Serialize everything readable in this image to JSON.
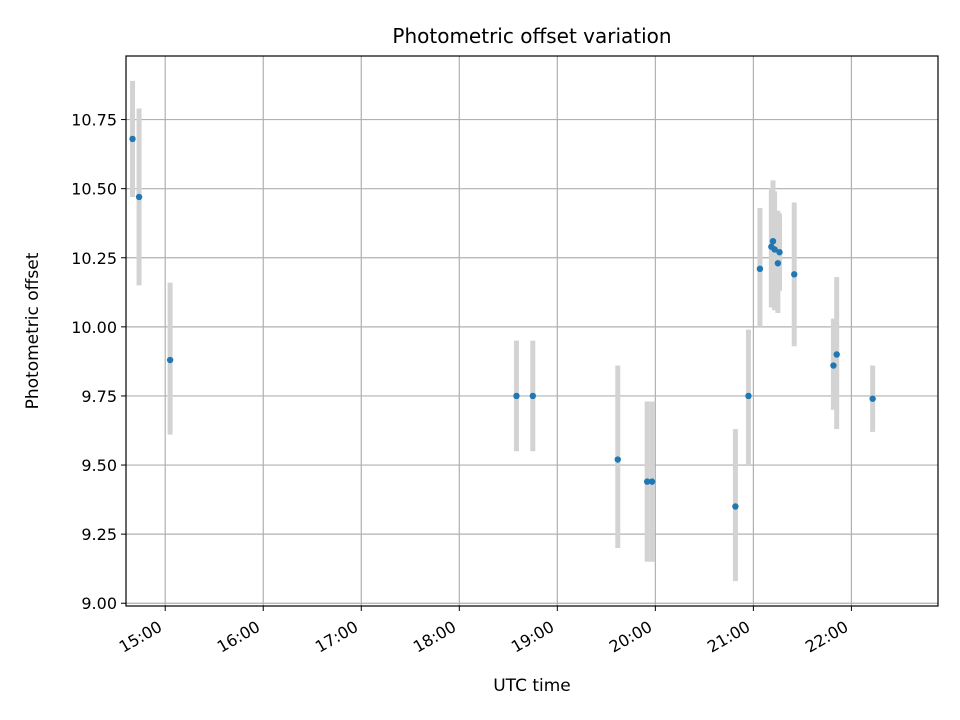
{
  "chart_data": {
    "type": "scatter",
    "title": "Photometric offset variation",
    "xlabel": "UTC time",
    "ylabel": "Photometric offset",
    "grid": true,
    "x_ticks": [
      "15:00",
      "16:00",
      "17:00",
      "18:00",
      "19:00",
      "20:00",
      "21:00",
      "22:00"
    ],
    "y_ticks": [
      "9.00",
      "9.25",
      "9.50",
      "9.75",
      "10.00",
      "10.25",
      "10.50",
      "10.75"
    ],
    "xlim": [
      "14:36",
      "22:53"
    ],
    "ylim": [
      8.99,
      10.98
    ],
    "marker_color": "#1f77b4",
    "errorbar_color": "#d3d3d3",
    "points": [
      {
        "x": "14:40",
        "y": 10.68,
        "ylow": 10.47,
        "yhigh": 10.89
      },
      {
        "x": "14:44",
        "y": 10.47,
        "ylow": 10.15,
        "yhigh": 10.79
      },
      {
        "x": "15:03",
        "y": 9.88,
        "ylow": 9.61,
        "yhigh": 10.16
      },
      {
        "x": "18:35",
        "y": 9.75,
        "ylow": 9.55,
        "yhigh": 9.95
      },
      {
        "x": "18:45",
        "y": 9.75,
        "ylow": 9.55,
        "yhigh": 9.95
      },
      {
        "x": "19:37",
        "y": 9.52,
        "ylow": 9.2,
        "yhigh": 9.86
      },
      {
        "x": "19:55",
        "y": 9.44,
        "ylow": 9.15,
        "yhigh": 9.73
      },
      {
        "x": "19:58",
        "y": 9.44,
        "ylow": 9.15,
        "yhigh": 9.73
      },
      {
        "x": "20:49",
        "y": 9.35,
        "ylow": 9.08,
        "yhigh": 9.63
      },
      {
        "x": "20:57",
        "y": 9.75,
        "ylow": 9.5,
        "yhigh": 9.99
      },
      {
        "x": "21:04",
        "y": 10.21,
        "ylow": 10.0,
        "yhigh": 10.43
      },
      {
        "x": "21:11",
        "y": 10.29,
        "ylow": 10.07,
        "yhigh": 10.5
      },
      {
        "x": "21:12",
        "y": 10.31,
        "ylow": 10.1,
        "yhigh": 10.53
      },
      {
        "x": "21:13",
        "y": 10.28,
        "ylow": 10.06,
        "yhigh": 10.49
      },
      {
        "x": "21:15",
        "y": 10.23,
        "ylow": 10.05,
        "yhigh": 10.42
      },
      {
        "x": "21:16",
        "y": 10.27,
        "ylow": 10.13,
        "yhigh": 10.41
      },
      {
        "x": "21:25",
        "y": 10.19,
        "ylow": 9.93,
        "yhigh": 10.45
      },
      {
        "x": "21:49",
        "y": 9.86,
        "ylow": 9.7,
        "yhigh": 10.03
      },
      {
        "x": "21:51",
        "y": 9.9,
        "ylow": 9.63,
        "yhigh": 10.18
      },
      {
        "x": "22:13",
        "y": 9.74,
        "ylow": 9.62,
        "yhigh": 9.86
      }
    ]
  }
}
